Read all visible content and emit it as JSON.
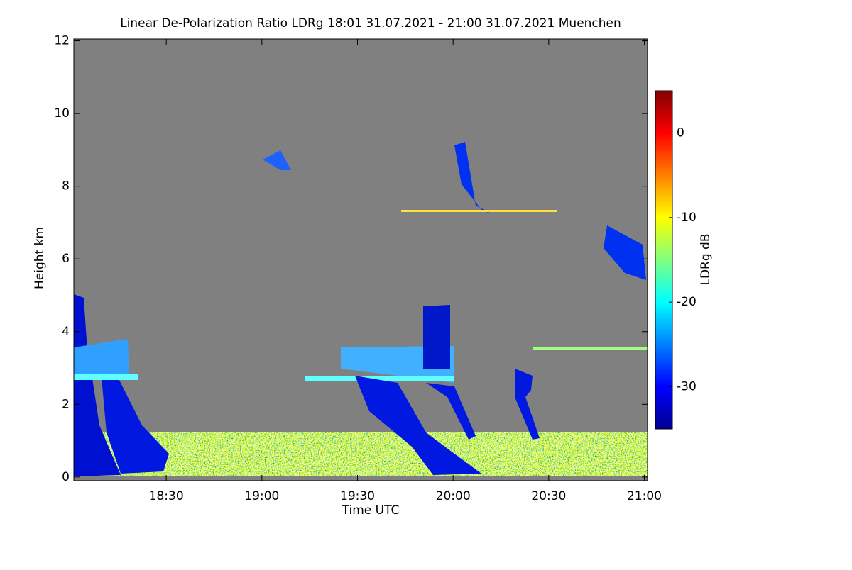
{
  "chart_data": {
    "type": "heatmap",
    "title": "Linear De-Polarization Ratio LDRg   18:01 31.07.2021 - 21:00 31.07.2021 Muenchen",
    "x_label": "Time UTC",
    "y_label": "Height km",
    "colorbar_label": "LDRg dB",
    "xlim": [
      18.0167,
      21.0167
    ],
    "xticks": [
      {
        "value": 18.5,
        "label": "18:30"
      },
      {
        "value": 19.0,
        "label": "19:00"
      },
      {
        "value": 19.5,
        "label": "19:30"
      },
      {
        "value": 20.0,
        "label": "20:00"
      },
      {
        "value": 20.5,
        "label": "20:30"
      },
      {
        "value": 21.0,
        "label": "21:00"
      }
    ],
    "ylim": [
      -0.1,
      12.05
    ],
    "yticks": [
      0,
      2,
      4,
      6,
      8,
      10,
      12
    ],
    "clim": [
      -35,
      5
    ],
    "cticks": [
      -30,
      -20,
      -10,
      0
    ],
    "colormap": [
      "#00008f",
      "#0000ff",
      "#0080ff",
      "#00ffff",
      "#80ff80",
      "#ffff00",
      "#ff8000",
      "#ff0000",
      "#800000"
    ],
    "background": "#808080"
  }
}
